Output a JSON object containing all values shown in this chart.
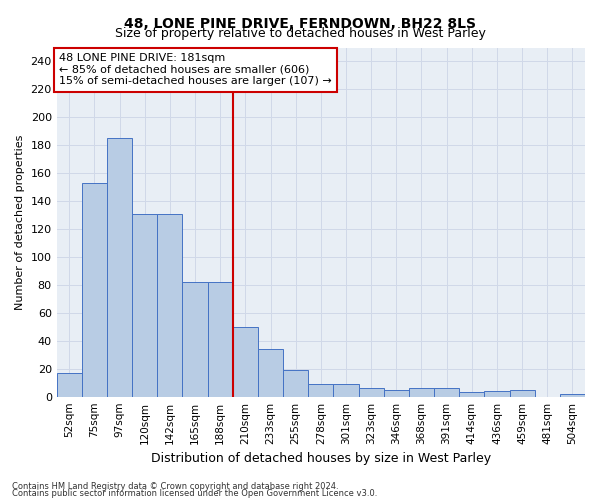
{
  "title": "48, LONE PINE DRIVE, FERNDOWN, BH22 8LS",
  "subtitle": "Size of property relative to detached houses in West Parley",
  "xlabel": "Distribution of detached houses by size in West Parley",
  "ylabel": "Number of detached properties",
  "footnote1": "Contains HM Land Registry data © Crown copyright and database right 2024.",
  "footnote2": "Contains public sector information licensed under the Open Government Licence v3.0.",
  "bar_labels": [
    "52sqm",
    "75sqm",
    "97sqm",
    "120sqm",
    "142sqm",
    "165sqm",
    "188sqm",
    "210sqm",
    "233sqm",
    "255sqm",
    "278sqm",
    "301sqm",
    "323sqm",
    "346sqm",
    "368sqm",
    "391sqm",
    "414sqm",
    "436sqm",
    "459sqm",
    "481sqm",
    "504sqm"
  ],
  "bar_values": [
    17,
    153,
    185,
    131,
    131,
    82,
    82,
    50,
    34,
    19,
    9,
    9,
    6,
    5,
    6,
    6,
    3,
    4,
    5,
    0,
    2
  ],
  "bar_color": "#b8cce4",
  "bar_edge_color": "#4472c4",
  "grid_color": "#d0d8e8",
  "background_color": "#e8eef5",
  "vline_index": 6,
  "vline_color": "#cc0000",
  "annotation_text": "48 LONE PINE DRIVE: 181sqm\n← 85% of detached houses are smaller (606)\n15% of semi-detached houses are larger (107) →",
  "annotation_box_color": "white",
  "annotation_box_edge": "#cc0000",
  "ylim": [
    0,
    250
  ],
  "yticks": [
    0,
    20,
    40,
    60,
    80,
    100,
    120,
    140,
    160,
    180,
    200,
    220,
    240
  ]
}
